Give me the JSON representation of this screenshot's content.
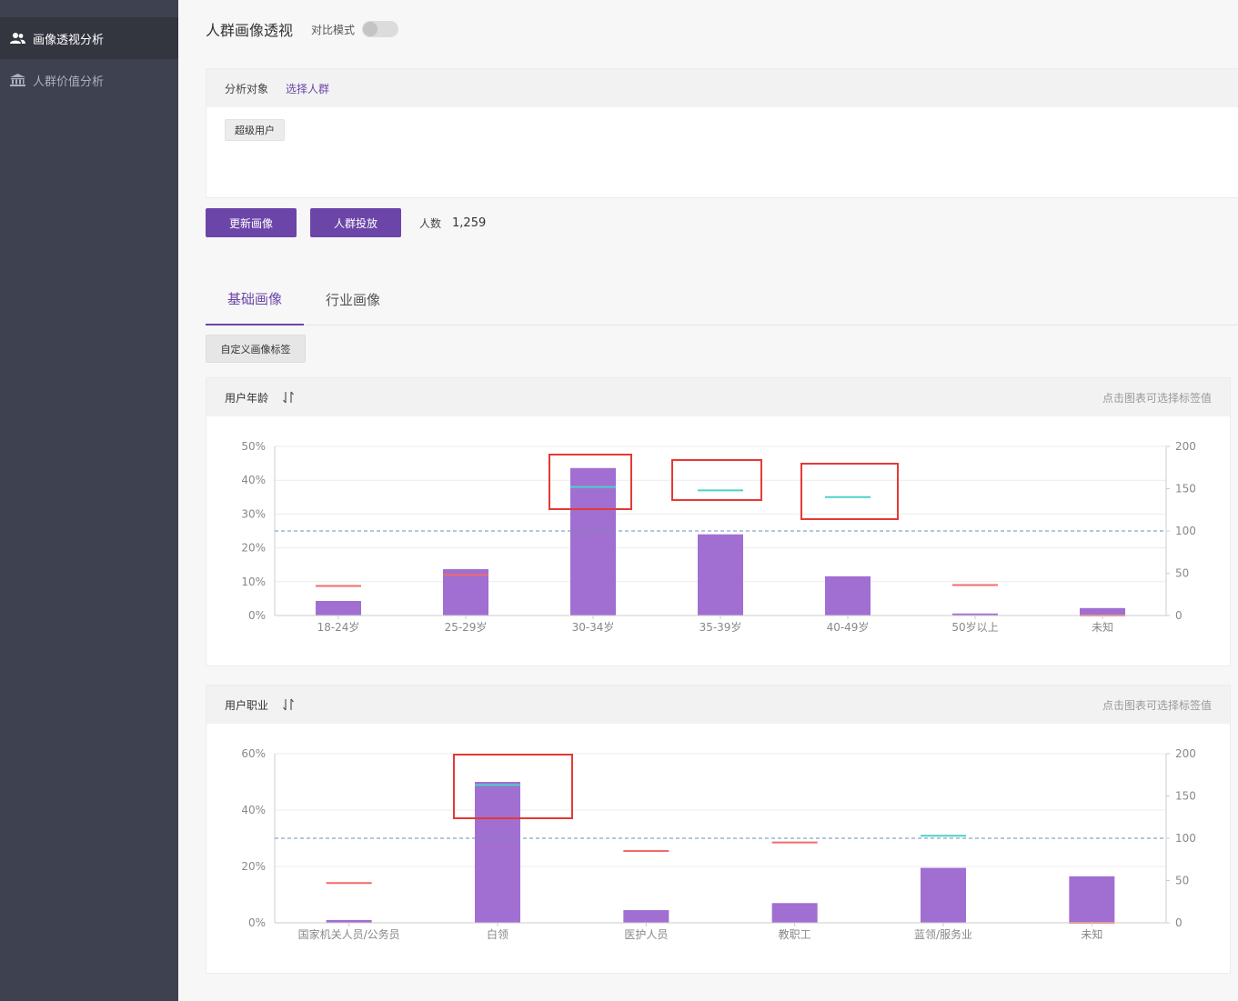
{
  "sidebar": {
    "items": [
      {
        "label": "画像透视分析",
        "icon": "users-icon",
        "active": true
      },
      {
        "label": "人群价值分析",
        "icon": "bank-icon",
        "active": false
      }
    ]
  },
  "header": {
    "title": "人群画像透视",
    "compare_label": "对比模式",
    "compare_on": false
  },
  "target": {
    "label": "分析对象",
    "select_link": "选择人群",
    "tags": [
      "超级用户"
    ]
  },
  "actions": {
    "update_button": "更新画像",
    "deliver_button": "人群投放",
    "count_label": "人数",
    "count_value": "1,259"
  },
  "tabs": [
    {
      "label": "基础画像",
      "active": true
    },
    {
      "label": "行业画像",
      "active": false
    }
  ],
  "custom_button": "自定义画像标签",
  "panels": [
    {
      "title": "用户年龄",
      "hint": "点击图表可选择标签值"
    },
    {
      "title": "用户职业",
      "hint": "点击图表可选择标签值"
    }
  ],
  "colors": {
    "accent": "#6b46a8",
    "bar": "#a06fd1",
    "tgi_high": "#4fd1c5",
    "tgi_low": "#f26b6b",
    "baseline": "#6a8fb8",
    "highlight": "#e53935"
  },
  "chart_data": [
    {
      "type": "bar",
      "title": "用户年龄",
      "categories": [
        "18-24岁",
        "25-29岁",
        "30-34岁",
        "35-39岁",
        "40-49岁",
        "50岁以上",
        "未知"
      ],
      "values": [
        4.3,
        13.7,
        43.6,
        24.0,
        11.6,
        0.6,
        2.2
      ],
      "ylim": [
        0,
        50
      ],
      "yticks": [
        "0%",
        "10%",
        "20%",
        "30%",
        "40%",
        "50%"
      ],
      "yticks_values": [
        0,
        10,
        20,
        30,
        40,
        50
      ],
      "y2lim": [
        0,
        200
      ],
      "y2ticks": [
        0,
        50,
        100,
        150,
        200
      ],
      "y2ticks_labels": [
        "0",
        "50",
        "100",
        "150",
        "200"
      ],
      "tgi": [
        35,
        48,
        152,
        148,
        140,
        36,
        0
      ],
      "baseline": 100
    },
    {
      "type": "bar",
      "title": "用户职业",
      "categories": [
        "国家机关人员/公务员",
        "白领",
        "医护人员",
        "教职工",
        "蓝领/服务业",
        "未知"
      ],
      "values": [
        1.0,
        50.0,
        4.5,
        7.0,
        19.5,
        16.5
      ],
      "ylim": [
        0,
        60
      ],
      "yticks": [
        "0%",
        "20%",
        "40%",
        "60%"
      ],
      "yticks_values": [
        0,
        20,
        40,
        60
      ],
      "y2lim": [
        0,
        200
      ],
      "y2ticks": [
        0,
        50,
        100,
        150,
        200
      ],
      "y2ticks_labels": [
        "0",
        "50",
        "100",
        "150",
        "200"
      ],
      "tgi": [
        47,
        163,
        85,
        95,
        103,
        0
      ],
      "baseline": 100
    }
  ]
}
